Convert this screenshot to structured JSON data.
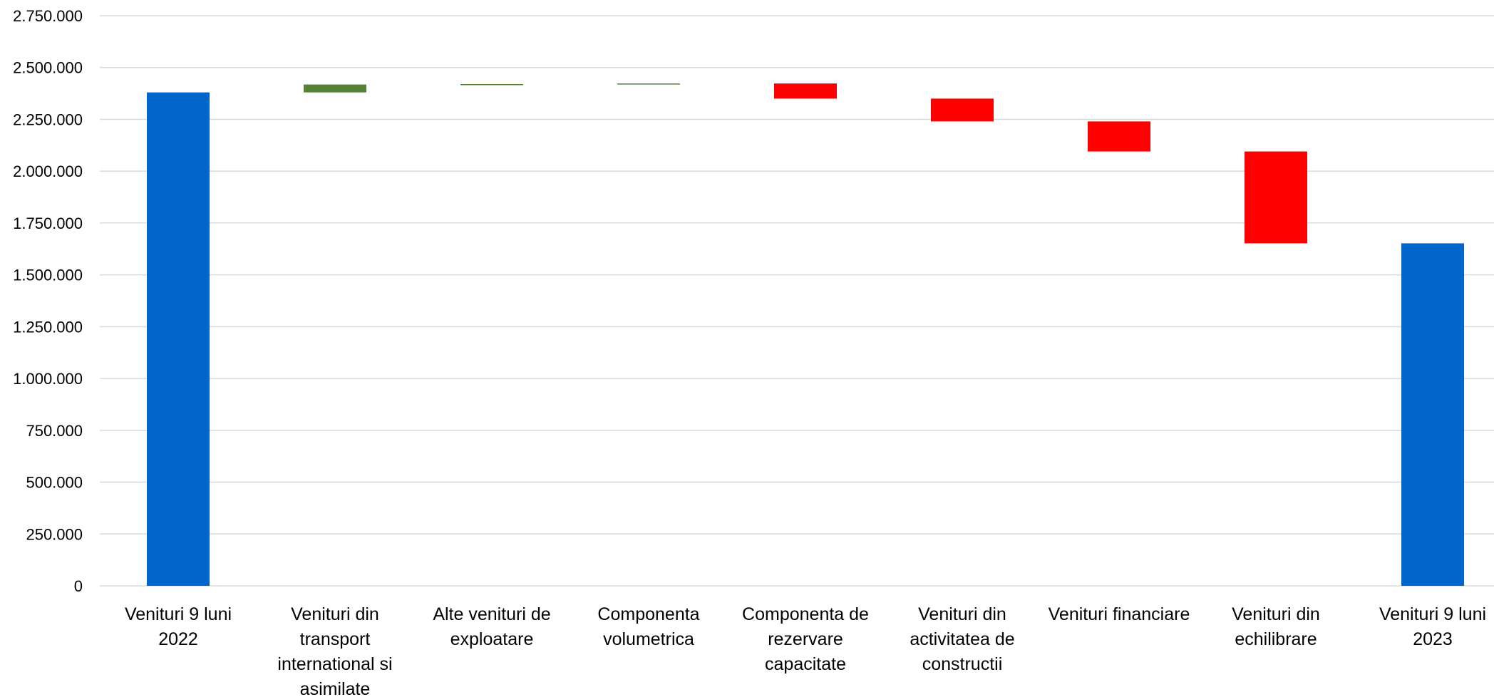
{
  "chart_data": {
    "type": "bar",
    "subtype": "waterfall",
    "title": "",
    "xlabel": "",
    "ylabel": "",
    "ylim": [
      0,
      2750000
    ],
    "yticks": [
      0,
      250000,
      500000,
      750000,
      1000000,
      1250000,
      1500000,
      1750000,
      2000000,
      2250000,
      2500000,
      2750000
    ],
    "ytick_labels": [
      "0",
      "250.000",
      "500.000",
      "750.000",
      "1.000.000",
      "1.250.000",
      "1.500.000",
      "1.750.000",
      "2.000.000",
      "2.250.000",
      "2.500.000",
      "2.750.000"
    ],
    "grid": true,
    "legend": "none",
    "colors": {
      "total": "#0066CC",
      "increase": "#548235",
      "decrease": "#FF0000"
    },
    "categories": [
      "Venituri 9 luni 2022",
      "Venituri din transport international si asimilate",
      "Alte venituri de exploatare",
      "Componenta volumetrica",
      "Componenta de rezervare capacitate",
      "Venituri din activitatea de constructii",
      "Venituri financiare",
      "Venituri din echilibrare",
      "Venituri 9 luni 2023"
    ],
    "category_label_lines": [
      [
        "Venituri 9 luni",
        "2022"
      ],
      [
        "Venituri din",
        "transport",
        "international si",
        "asimilate"
      ],
      [
        "Alte venituri de",
        "exploatare"
      ],
      [
        "Componenta",
        "volumetrica"
      ],
      [
        "Componenta de",
        "rezervare",
        "capacitate"
      ],
      [
        "Venituri din",
        "activitatea de",
        "constructii"
      ],
      [
        "Venituri financiare"
      ],
      [
        "Venituri din",
        "echilibrare"
      ],
      [
        "Venituri 9 luni",
        "2023"
      ]
    ],
    "bars": [
      {
        "kind": "total",
        "start": 0,
        "end": 2380000
      },
      {
        "kind": "increase",
        "start": 2380000,
        "end": 2418000
      },
      {
        "kind": "increase",
        "start": 2418000,
        "end": 2420000
      },
      {
        "kind": "increase",
        "start": 2420000,
        "end": 2423000
      },
      {
        "kind": "decrease",
        "start": 2423000,
        "end": 2350000
      },
      {
        "kind": "decrease",
        "start": 2350000,
        "end": 2240000
      },
      {
        "kind": "decrease",
        "start": 2240000,
        "end": 2095000
      },
      {
        "kind": "decrease",
        "start": 2095000,
        "end": 1652000
      },
      {
        "kind": "total",
        "start": 0,
        "end": 1652000
      }
    ]
  }
}
